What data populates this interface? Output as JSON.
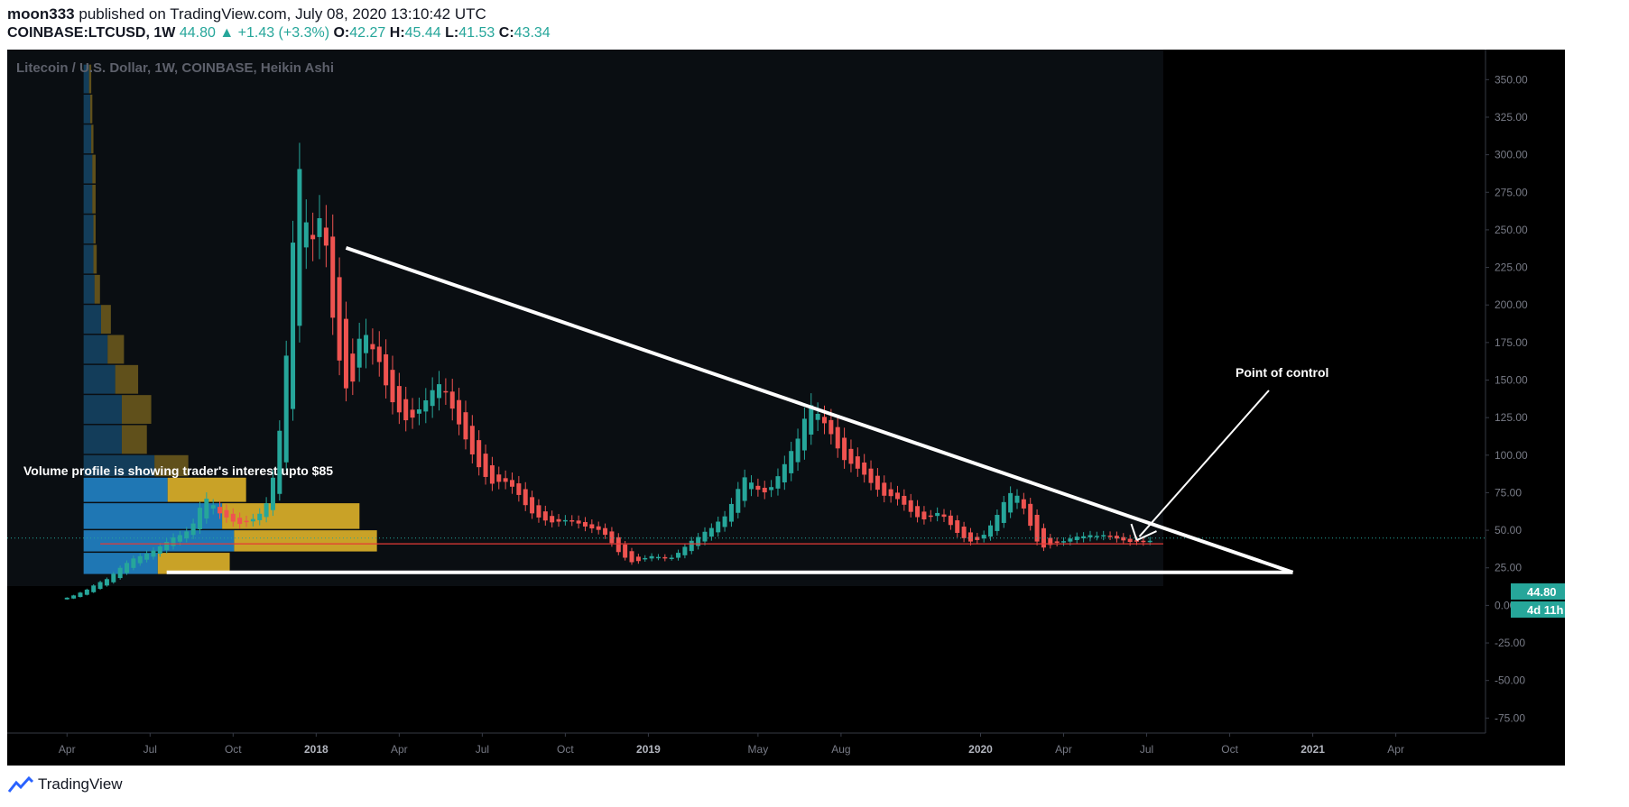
{
  "header": {
    "author": "moon333",
    "published": "published on TradingView.com, July 08, 2020 13:10:42 UTC",
    "symbol": "COINBASE:LTCUSD, 1W",
    "last": "44.80",
    "change": "+1.43 (+3.3%)",
    "o_label": "O:",
    "o_value": "42.27",
    "h_label": "H:",
    "h_value": "45.44",
    "l_label": "L:",
    "l_value": "41.53",
    "c_label": "C:",
    "c_value": "43.34"
  },
  "legend_title": "Litecoin / U.S. Dollar, 1W, COINBASE, Heikin Ashi",
  "annotations": {
    "volume_note": "Volume profile is showing trader's interest upto $85",
    "poc_note": "Point of control"
  },
  "price_badge": {
    "price": "44.80",
    "countdown": "4d 11h"
  },
  "footer": {
    "brand": "TradingView"
  },
  "colors": {
    "up": "#26a69a",
    "down": "#ef5350",
    "vp_blue": "#1f77b4",
    "vp_gold": "#c9a227",
    "bg": "#000000",
    "axis_text": "#787b86"
  },
  "chart_data": {
    "type": "candlestick",
    "title": "Litecoin / U.S. Dollar, 1W, COINBASE, Heikin Ashi",
    "y_ticks": [
      "350.00",
      "325.00",
      "300.00",
      "275.00",
      "250.00",
      "225.00",
      "200.00",
      "175.00",
      "150.00",
      "125.00",
      "100.00",
      "75.00",
      "50.00",
      "25.00",
      "0.00",
      "-25.00",
      "-50.00",
      "-75.00"
    ],
    "ylim": [
      -85,
      370
    ],
    "x_ticks": [
      "Apr",
      "Jul",
      "Oct",
      "2018",
      "Apr",
      "Jul",
      "Oct",
      "2019",
      "May",
      "Aug",
      "2020",
      "Apr",
      "Jul",
      "Oct",
      "2021",
      "Apr"
    ],
    "x_tick_years": [
      2017.25,
      2017.5,
      2017.75,
      2018.0,
      2018.25,
      2018.5,
      2018.75,
      2019.0,
      2019.33,
      2019.58,
      2020.0,
      2020.25,
      2020.5,
      2020.75,
      2021.0,
      2021.25
    ],
    "xlim": [
      2017.07,
      2021.52
    ],
    "weekly_close": [
      [
        2017.06,
        4.0
      ],
      [
        2017.25,
        5.5
      ],
      [
        2017.27,
        7
      ],
      [
        2017.29,
        9
      ],
      [
        2017.31,
        11
      ],
      [
        2017.33,
        14
      ],
      [
        2017.35,
        16
      ],
      [
        2017.37,
        18
      ],
      [
        2017.39,
        22
      ],
      [
        2017.41,
        26
      ],
      [
        2017.43,
        29
      ],
      [
        2017.45,
        32
      ],
      [
        2017.47,
        33
      ],
      [
        2017.49,
        35
      ],
      [
        2017.51,
        37
      ],
      [
        2017.53,
        40
      ],
      [
        2017.55,
        43
      ],
      [
        2017.57,
        46
      ],
      [
        2017.59,
        47
      ],
      [
        2017.61,
        50
      ],
      [
        2017.63,
        56
      ],
      [
        2017.65,
        68
      ],
      [
        2017.67,
        72
      ],
      [
        2017.69,
        65
      ],
      [
        2017.71,
        60
      ],
      [
        2017.73,
        58
      ],
      [
        2017.75,
        55
      ],
      [
        2017.77,
        54
      ],
      [
        2017.79,
        56
      ],
      [
        2017.81,
        58
      ],
      [
        2017.83,
        62
      ],
      [
        2017.85,
        70
      ],
      [
        2017.87,
        90
      ],
      [
        2017.89,
        125
      ],
      [
        2017.91,
        180
      ],
      [
        2017.93,
        262
      ],
      [
        2017.95,
        300
      ],
      [
        2017.97,
        240
      ],
      [
        2017.99,
        245
      ],
      [
        2018.01,
        262
      ],
      [
        2018.03,
        232
      ],
      [
        2018.05,
        178
      ],
      [
        2018.07,
        158
      ],
      [
        2018.09,
        140
      ],
      [
        2018.11,
        152
      ],
      [
        2018.13,
        186
      ],
      [
        2018.15,
        178
      ],
      [
        2018.17,
        168
      ],
      [
        2018.19,
        160
      ],
      [
        2018.21,
        142
      ],
      [
        2018.23,
        133
      ],
      [
        2018.25,
        127
      ],
      [
        2018.27,
        122
      ],
      [
        2018.29,
        126
      ],
      [
        2018.31,
        132
      ],
      [
        2018.33,
        138
      ],
      [
        2018.35,
        145
      ],
      [
        2018.37,
        148
      ],
      [
        2018.39,
        140
      ],
      [
        2018.41,
        128
      ],
      [
        2018.43,
        118
      ],
      [
        2018.45,
        108
      ],
      [
        2018.47,
        98
      ],
      [
        2018.49,
        90
      ],
      [
        2018.51,
        84
      ],
      [
        2018.53,
        80
      ],
      [
        2018.55,
        83
      ],
      [
        2018.57,
        82
      ],
      [
        2018.59,
        78
      ],
      [
        2018.61,
        72
      ],
      [
        2018.63,
        65
      ],
      [
        2018.65,
        60
      ],
      [
        2018.67,
        58
      ],
      [
        2018.69,
        56
      ],
      [
        2018.71,
        55
      ],
      [
        2018.73,
        56
      ],
      [
        2018.75,
        57
      ],
      [
        2018.77,
        56
      ],
      [
        2018.79,
        54
      ],
      [
        2018.81,
        52
      ],
      [
        2018.83,
        51
      ],
      [
        2018.85,
        50
      ],
      [
        2018.87,
        46
      ],
      [
        2018.89,
        40
      ],
      [
        2018.91,
        34
      ],
      [
        2018.93,
        31
      ],
      [
        2018.95,
        28
      ],
      [
        2018.97,
        30
      ],
      [
        2018.99,
        32
      ],
      [
        2019.01,
        33
      ],
      [
        2019.03,
        32
      ],
      [
        2019.05,
        31
      ],
      [
        2019.07,
        32
      ],
      [
        2019.09,
        36
      ],
      [
        2019.11,
        40
      ],
      [
        2019.13,
        44
      ],
      [
        2019.15,
        46
      ],
      [
        2019.17,
        50
      ],
      [
        2019.19,
        52
      ],
      [
        2019.21,
        57
      ],
      [
        2019.23,
        60
      ],
      [
        2019.25,
        70
      ],
      [
        2019.27,
        80
      ],
      [
        2019.29,
        87
      ],
      [
        2019.31,
        80
      ],
      [
        2019.33,
        76
      ],
      [
        2019.35,
        75
      ],
      [
        2019.37,
        80
      ],
      [
        2019.39,
        88
      ],
      [
        2019.41,
        96
      ],
      [
        2019.43,
        105
      ],
      [
        2019.45,
        113
      ],
      [
        2019.47,
        128
      ],
      [
        2019.49,
        135
      ],
      [
        2019.51,
        125
      ],
      [
        2019.53,
        120
      ],
      [
        2019.55,
        112
      ],
      [
        2019.57,
        102
      ],
      [
        2019.59,
        95
      ],
      [
        2019.61,
        94
      ],
      [
        2019.63,
        90
      ],
      [
        2019.65,
        86
      ],
      [
        2019.67,
        80
      ],
      [
        2019.69,
        76
      ],
      [
        2019.71,
        72
      ],
      [
        2019.73,
        73
      ],
      [
        2019.75,
        70
      ],
      [
        2019.77,
        66
      ],
      [
        2019.79,
        61
      ],
      [
        2019.81,
        58
      ],
      [
        2019.83,
        57
      ],
      [
        2019.85,
        60
      ],
      [
        2019.87,
        62
      ],
      [
        2019.89,
        58
      ],
      [
        2019.91,
        52
      ],
      [
        2019.93,
        47
      ],
      [
        2019.95,
        44
      ],
      [
        2019.97,
        42
      ],
      [
        2019.99,
        44
      ],
      [
        2020.01,
        48
      ],
      [
        2020.03,
        55
      ],
      [
        2020.05,
        62
      ],
      [
        2020.07,
        71
      ],
      [
        2020.09,
        76
      ],
      [
        2020.11,
        72
      ],
      [
        2020.13,
        62
      ],
      [
        2020.15,
        50
      ],
      [
        2020.17,
        40
      ],
      [
        2020.19,
        38
      ],
      [
        2020.21,
        41
      ],
      [
        2020.23,
        42
      ],
      [
        2020.25,
        43
      ],
      [
        2020.27,
        45
      ],
      [
        2020.29,
        46
      ],
      [
        2020.31,
        46
      ],
      [
        2020.33,
        47
      ],
      [
        2020.35,
        46
      ],
      [
        2020.37,
        47
      ],
      [
        2020.39,
        46
      ],
      [
        2020.41,
        44
      ],
      [
        2020.43,
        43
      ],
      [
        2020.45,
        42
      ],
      [
        2020.47,
        43
      ],
      [
        2020.49,
        42
      ],
      [
        2020.51,
        43.34
      ]
    ],
    "trendline_top": {
      "from": [
        2018.09,
        238
      ],
      "to": [
        2020.94,
        22
      ]
    },
    "support_line": {
      "from": [
        2017.55,
        22
      ],
      "to": [
        2020.94,
        22
      ]
    },
    "point_of_control_price": 41,
    "last_price": 44.8,
    "volume_profile": [
      {
        "low": 340,
        "high": 360,
        "up": 5,
        "down": 2
      },
      {
        "low": 320,
        "high": 340,
        "up": 6,
        "down": 2
      },
      {
        "low": 300,
        "high": 320,
        "up": 7,
        "down": 2
      },
      {
        "low": 280,
        "high": 300,
        "up": 8,
        "down": 3
      },
      {
        "low": 260,
        "high": 280,
        "up": 8,
        "down": 3
      },
      {
        "low": 240,
        "high": 260,
        "up": 9,
        "down": 2
      },
      {
        "low": 220,
        "high": 240,
        "up": 9,
        "down": 3
      },
      {
        "low": 200,
        "high": 220,
        "up": 10,
        "down": 5
      },
      {
        "low": 180,
        "high": 200,
        "up": 16,
        "down": 9
      },
      {
        "low": 160,
        "high": 180,
        "up": 22,
        "down": 15
      },
      {
        "low": 140,
        "high": 160,
        "up": 29,
        "down": 21
      },
      {
        "low": 120,
        "high": 140,
        "up": 35,
        "down": 27
      },
      {
        "low": 100,
        "high": 120,
        "up": 35,
        "down": 23
      },
      {
        "low": 85,
        "high": 100,
        "up": 65,
        "down": 31
      },
      {
        "low": 68,
        "high": 85,
        "up": 77,
        "down": 72
      },
      {
        "low": 50,
        "high": 68,
        "up": 127,
        "down": 126
      },
      {
        "low": 35,
        "high": 50,
        "up": 138,
        "down": 131
      },
      {
        "low": 20,
        "high": 35,
        "up": 68,
        "down": 66
      }
    ]
  }
}
